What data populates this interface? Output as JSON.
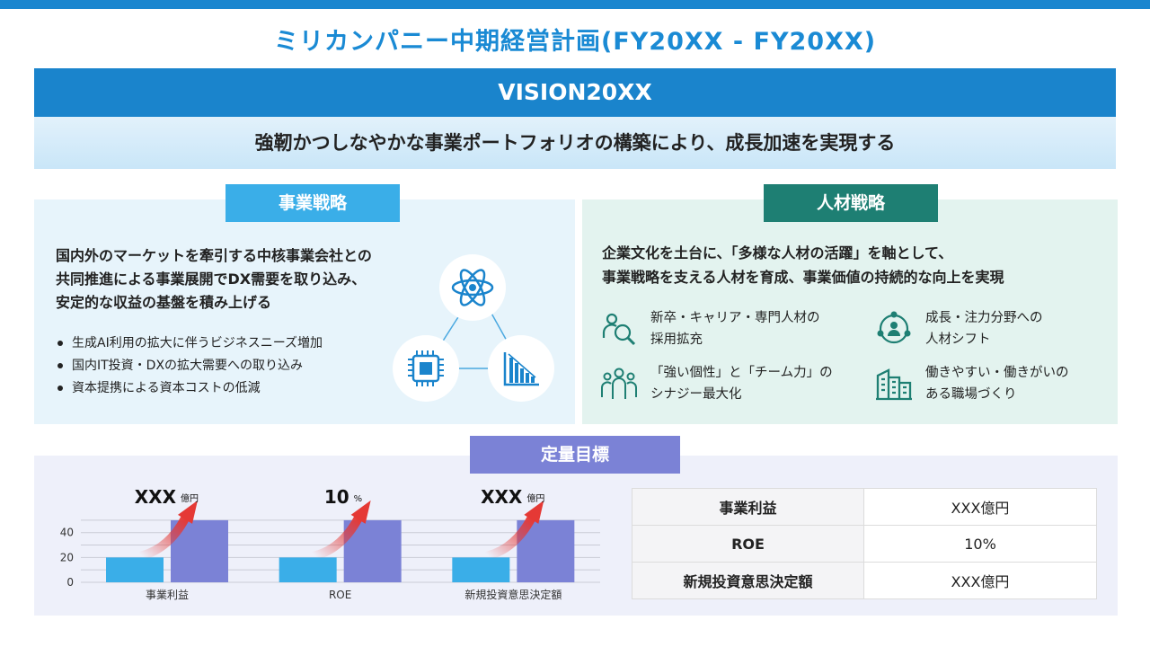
{
  "title": "ミリカンパニー中期経営計画(FY20XX - FY20XX)",
  "vision": {
    "label": "VISION20XX",
    "statement": "強靭かつしなやかな事業ポートフォリオの構築により、成長加速を実現する"
  },
  "business_strategy": {
    "tag": "事業戦略",
    "lead_lines": [
      "国内外のマーケットを牽引する中核事業会社との",
      "共同推進による事業展開でDX需要を取り込み、",
      "安定的な収益の基盤を積み上げる"
    ],
    "bullets": [
      "生成AI利用の拡大に伴うビジネスニーズ増加",
      "国内IT投資・DXの拡大需要への取り込み",
      "資本提携による資本コストの低減"
    ],
    "icons": [
      "atom-icon",
      "chip-icon",
      "declining-chart-icon"
    ]
  },
  "hr_strategy": {
    "tag": "人材戦略",
    "lead_lines": [
      "企業文化を土台に、「多様な人材の活躍」を軸として、",
      "事業戦略を支える人材を育成、事業価値の持続的な向上を実現"
    ],
    "items": [
      {
        "icon": "people-search-icon",
        "text": "新卒・キャリア・専門人材の\n採用拡充"
      },
      {
        "icon": "network-people-icon",
        "text": "成長・注力分野への\n人材シフト"
      },
      {
        "icon": "team-icon",
        "text": "「強い個性」と「チーム力」の\nシナジー最大化"
      },
      {
        "icon": "building-icon",
        "text": "働きやすい・働きがいの\nある職場づくり"
      }
    ],
    "accent_color": "#1e7f73"
  },
  "quantitative": {
    "tag": "定量目標",
    "table": [
      {
        "label": "事業利益",
        "value": "XXX億円"
      },
      {
        "label": "ROE",
        "value": "10%"
      },
      {
        "label": "新規投資意思決定額",
        "value": "XXX億円"
      }
    ]
  },
  "chart_data": {
    "type": "bar",
    "categories": [
      "事業利益",
      "ROE",
      "新規投資意思決定額"
    ],
    "series": [
      {
        "values": [
          20,
          20,
          20
        ],
        "color": "#3aaee8"
      },
      {
        "values": [
          50,
          50,
          50
        ],
        "color": "#7b82d6"
      }
    ],
    "yticks": [
      0,
      20,
      40
    ],
    "ylim": [
      0,
      55
    ],
    "grid": true,
    "annotations": [
      {
        "value": "XXX",
        "unit": "億円"
      },
      {
        "value": "10",
        "unit": "%"
      },
      {
        "value": "XXX",
        "unit": "億円"
      }
    ],
    "arrow_color": "#e53935"
  }
}
